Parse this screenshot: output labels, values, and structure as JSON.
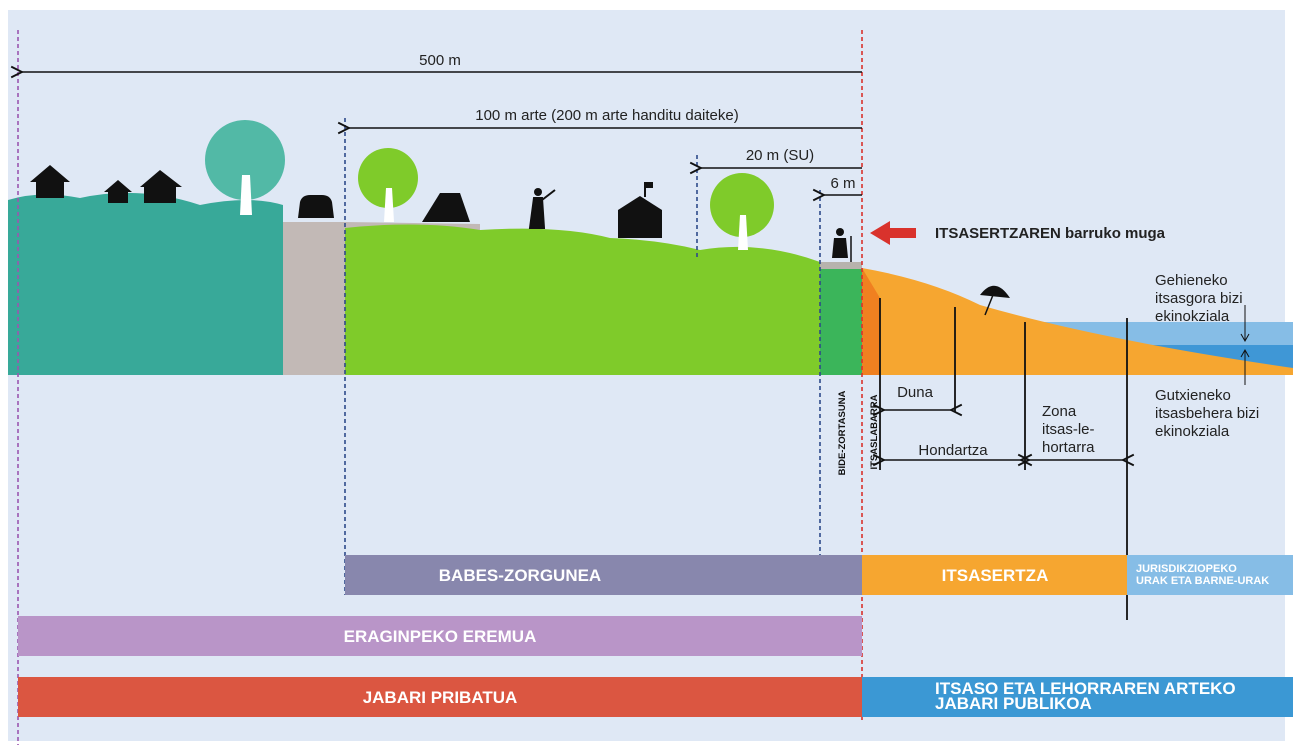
{
  "distances": [
    "500 m",
    "100 m arte (200 m arte handitu daiteke)",
    "20 m (SU)",
    "6 m"
  ],
  "inner_limit": "ITSASERTZAREN barruko muga",
  "high_tide": [
    "Gehieneko",
    "itsasgora bizi",
    "ekinokziala"
  ],
  "low_tide": [
    "Gutxieneko",
    "itsasbehera bizi",
    "ekinokziala"
  ],
  "vertical_labels": [
    "BIDE-ZORTASUNA",
    "ITSASLABARRA"
  ],
  "beach_zones": {
    "dune": "Duna",
    "beach": "Hondartza",
    "shore_zone": [
      "Zona",
      "itsas-le-",
      "hortarra"
    ]
  },
  "bands": {
    "protection": "BABES-ZORGUNEA",
    "coast": "ITSASERTZA",
    "waters": [
      "JURISDIKZIOPEKO",
      "URAK ETA BARNE-URAK"
    ],
    "influence": "ERAGINPEKO EREMUA",
    "private": "JABARI PRIBATUA",
    "public": [
      "ITSASO ETA LEHORRAREN ARTEKO",
      "JABARI PUBLIKOA"
    ]
  }
}
